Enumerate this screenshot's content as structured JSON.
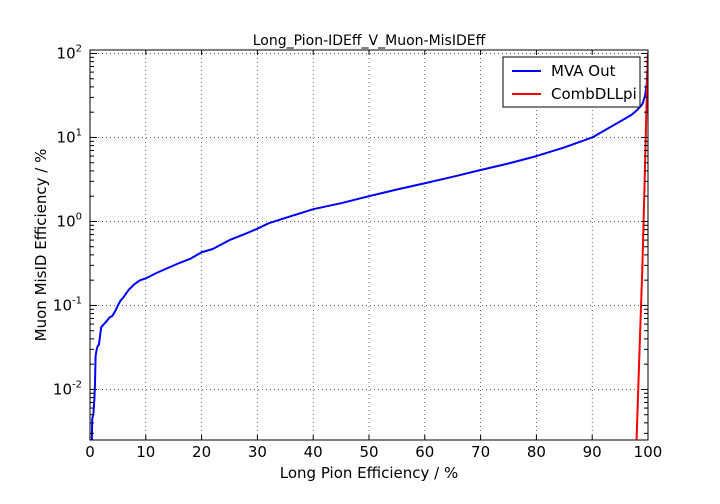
{
  "chart_data": {
    "type": "line",
    "title": "Long_Pion-IDEff_V_Muon-MisIDEff",
    "xlabel": "Long Pion Efficiency / %",
    "ylabel": "Muon MisID Efficiency / %",
    "xlim": [
      0,
      100
    ],
    "ylim": [
      0.0025,
      110
    ],
    "yscale": "log",
    "grid": true,
    "legend_position": "top-right",
    "x_ticks": [
      "0",
      "10",
      "20",
      "30",
      "40",
      "50",
      "60",
      "70",
      "80",
      "90",
      "100"
    ],
    "y_ticks": [
      {
        "base": "10",
        "exp": "-2"
      },
      {
        "base": "10",
        "exp": "-1"
      },
      {
        "base": "10",
        "exp": "0"
      },
      {
        "base": "10",
        "exp": "1"
      },
      {
        "base": "10",
        "exp": "2"
      }
    ],
    "series": [
      {
        "name": "MVA Out",
        "color": "#0000ff",
        "x": [
          0.3,
          0.4,
          0.6,
          0.8,
          0.9,
          1.0,
          1.2,
          1.4,
          1.6,
          2.0,
          2.5,
          3.0,
          3.5,
          4.0,
          4.5,
          5.0,
          5.5,
          6.0,
          6.5,
          7.0,
          8.0,
          9.0,
          10.0,
          12.0,
          14.0,
          16.0,
          18.0,
          20.0,
          22.0,
          25.0,
          28.0,
          30.0,
          32.0,
          35.0,
          40.0,
          45.0,
          50.0,
          55.0,
          60.0,
          65.0,
          70.0,
          75.0,
          80.0,
          85.0,
          90.0,
          93.0,
          95.0,
          97.0,
          98.0,
          99.0,
          99.5,
          99.8,
          100.0
        ],
        "y": [
          0.002,
          0.0045,
          0.005,
          0.008,
          0.012,
          0.025,
          0.03,
          0.033,
          0.034,
          0.055,
          0.06,
          0.065,
          0.072,
          0.075,
          0.085,
          0.1,
          0.115,
          0.125,
          0.14,
          0.155,
          0.18,
          0.2,
          0.21,
          0.245,
          0.28,
          0.32,
          0.36,
          0.43,
          0.47,
          0.6,
          0.72,
          0.82,
          0.95,
          1.1,
          1.4,
          1.65,
          2.0,
          2.4,
          2.85,
          3.4,
          4.1,
          4.9,
          6.0,
          7.6,
          10.0,
          13.0,
          15.5,
          18.5,
          21.0,
          25.0,
          32.0,
          45.0,
          100.0
        ]
      },
      {
        "name": "CombDLLpi",
        "color": "#ff0000",
        "x": [
          97.9,
          98.4,
          99.0,
          99.4,
          99.7,
          99.9,
          100.0
        ],
        "y": [
          0.002,
          0.02,
          0.3,
          3.0,
          20.0,
          60.0,
          100.0
        ]
      }
    ]
  }
}
